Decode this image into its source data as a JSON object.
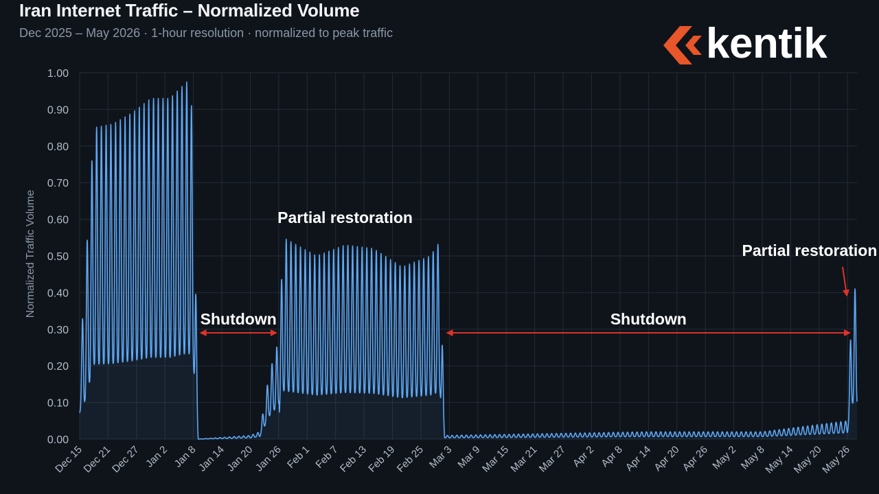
{
  "header": {
    "title": "Iran Internet Traffic – Normalized Volume",
    "subtitle": "Dec 2025 – May 2026  ·  1-hour resolution  ·  normalized to peak traffic"
  },
  "logo": {
    "text": "kentik",
    "icon": "kentik-chevron-icon",
    "color": "#e8562a"
  },
  "colors": {
    "line": "#5ea8f5",
    "arrow": "#e0322a",
    "grid": "#232b36",
    "background": "#0f141b"
  },
  "chart_data": {
    "type": "line",
    "title": "Iran Internet Traffic – Normalized Volume",
    "xlabel": "",
    "ylabel": "Normalized Traffic Volume",
    "ylim": [
      0,
      1.0
    ],
    "yticks": [
      "0.00",
      "0.10",
      "0.20",
      "0.30",
      "0.40",
      "0.50",
      "0.60",
      "0.70",
      "0.80",
      "0.90",
      "1.00"
    ],
    "xticks": [
      "Dec 15",
      "Dec 21",
      "Dec 27",
      "Jan 2",
      "Jan 8",
      "Jan 14",
      "Jan 20",
      "Jan 26",
      "Feb 1",
      "Feb 7",
      "Feb 13",
      "Feb 19",
      "Feb 25",
      "Mar 3",
      "Mar 9",
      "Mar 15",
      "Mar 21",
      "Mar 27",
      "Apr 2",
      "Apr 8",
      "Apr 14",
      "Apr 20",
      "Apr 26",
      "May 2",
      "May 8",
      "May 14",
      "May 20",
      "May 26"
    ],
    "grid": true,
    "series": [
      {
        "points": [
          [
            "2025-12-15",
            0.2
          ],
          [
            "2025-12-18",
            0.85
          ],
          [
            "2025-12-22",
            0.86
          ],
          [
            "2025-12-26",
            0.89
          ],
          [
            "2025-12-30",
            0.93
          ],
          [
            "2026-01-03",
            0.93
          ],
          [
            "2026-01-07",
            0.98
          ],
          [
            "2026-01-08",
            0.86
          ],
          [
            "2026-01-09",
            0.0
          ],
          [
            "2026-01-20",
            0.01
          ],
          [
            "2026-01-22",
            0.02
          ],
          [
            "2026-01-24",
            0.18
          ],
          [
            "2026-01-26",
            0.27
          ],
          [
            "2026-01-27",
            0.55
          ],
          [
            "2026-02-03",
            0.5
          ],
          [
            "2026-02-09",
            0.53
          ],
          [
            "2026-02-15",
            0.52
          ],
          [
            "2026-02-21",
            0.47
          ],
          [
            "2026-02-27",
            0.5
          ],
          [
            "2026-03-01",
            0.54
          ],
          [
            "2026-03-02",
            0.01
          ],
          [
            "2026-04-14",
            0.02
          ],
          [
            "2026-05-08",
            0.02
          ],
          [
            "2026-05-26",
            0.05
          ],
          [
            "2026-05-27",
            0.41
          ]
        ]
      }
    ],
    "annotations": [
      {
        "text": "Shutdown",
        "from": "2026-01-09",
        "to": "2026-01-26",
        "y": 0.29
      },
      {
        "text": "Partial restoration",
        "x": "2026-02-09",
        "y": 0.59
      },
      {
        "text": "Shutdown",
        "from": "2026-03-02",
        "to": "2026-05-27",
        "y": 0.29
      },
      {
        "text": "Partial restoration",
        "x": "2026-05-18",
        "y": 0.5,
        "arrow_to": [
          "2026-05-27",
          0.4
        ]
      }
    ]
  }
}
